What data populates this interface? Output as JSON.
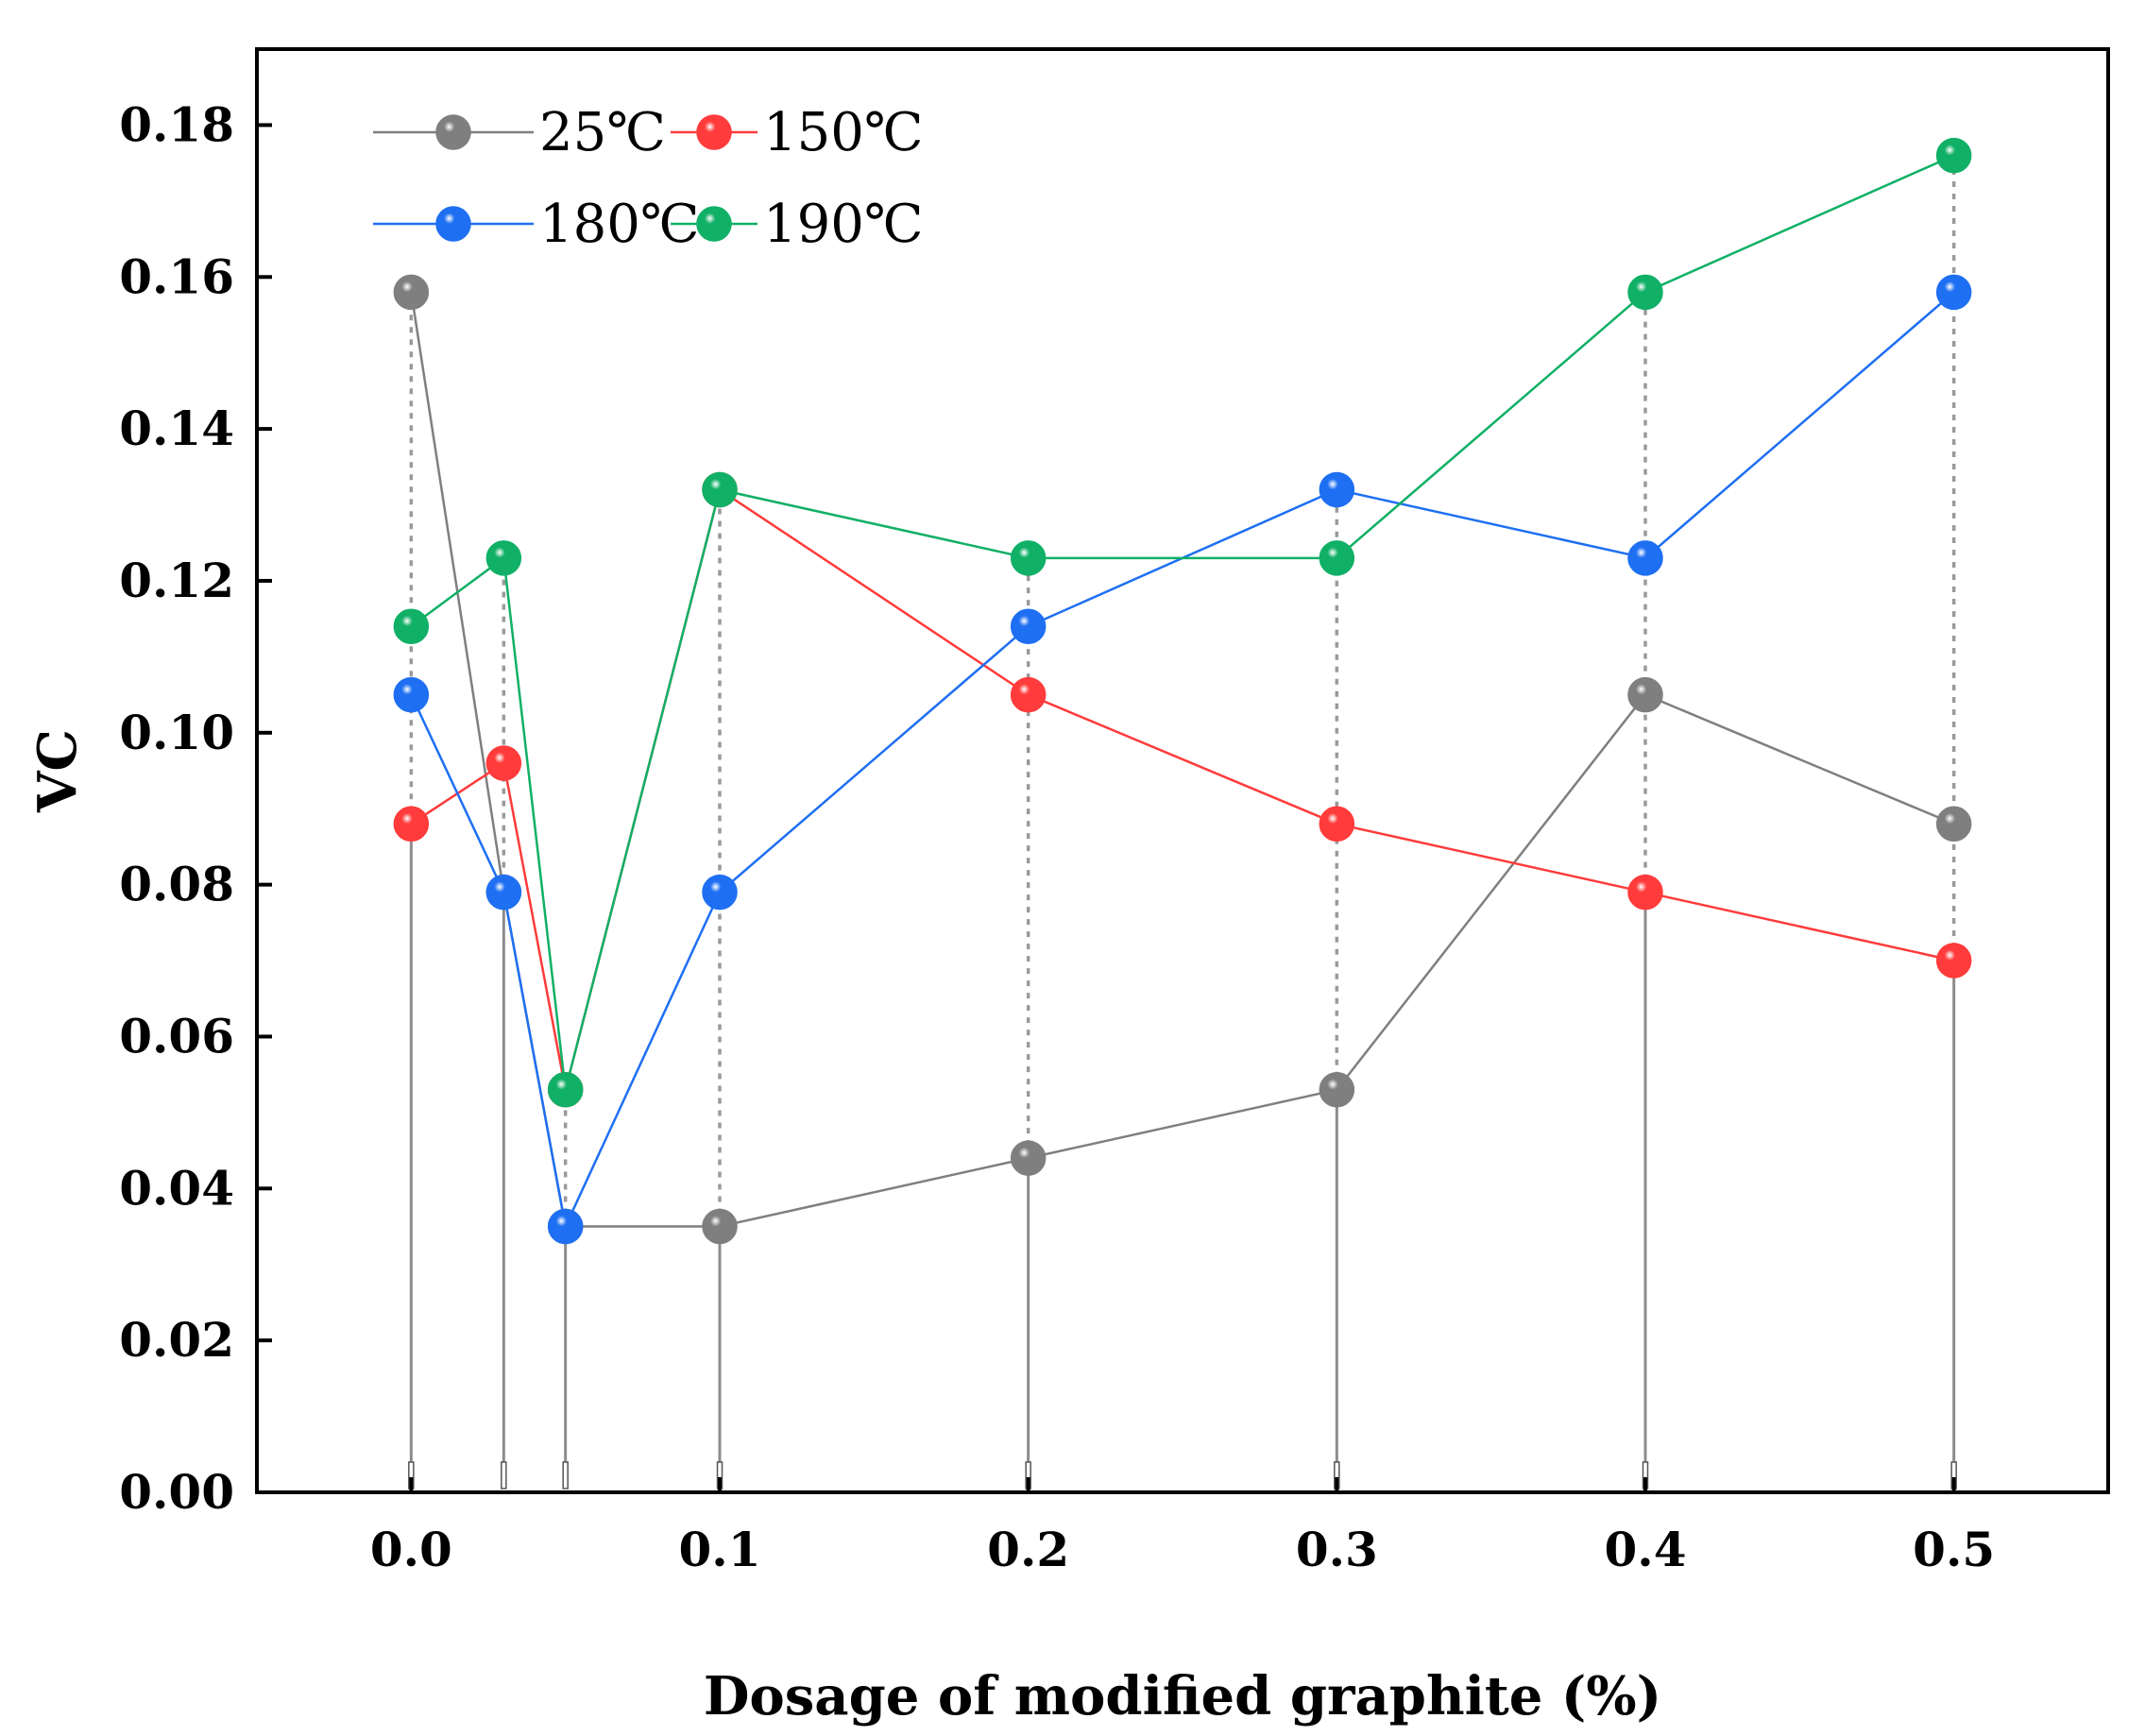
{
  "chart_data": {
    "type": "line",
    "title": "",
    "xlabel": "Dosage of modified graphite (%)",
    "ylabel": "VC",
    "xlim": [
      -0.05,
      0.55
    ],
    "ylim": [
      0,
      0.19
    ],
    "x_ticks": [
      "0.0",
      "0.1",
      "0.2",
      "0.3",
      "0.4",
      "0.5"
    ],
    "y_ticks": [
      "0.00",
      "0.02",
      "0.04",
      "0.06",
      "0.08",
      "0.10",
      "0.12",
      "0.14",
      "0.16",
      "0.18"
    ],
    "x": [
      0,
      0.03,
      0.05,
      0.1,
      0.2,
      0.3,
      0.4,
      0.5
    ],
    "series": [
      {
        "name": "25℃",
        "color": "#7f7f7f",
        "values": [
          0.158,
          0.079,
          0.035,
          0.035,
          0.044,
          0.053,
          0.105,
          0.088
        ]
      },
      {
        "name": "150℃",
        "color": "#ff3b3b",
        "values": [
          0.088,
          0.096,
          0.053,
          0.132,
          0.105,
          0.088,
          0.079,
          0.07
        ]
      },
      {
        "name": "180℃",
        "color": "#1e6ff2",
        "values": [
          0.105,
          0.079,
          0.035,
          0.079,
          0.114,
          0.132,
          0.123,
          0.158
        ]
      },
      {
        "name": "190℃",
        "color": "#10b066",
        "values": [
          0.114,
          0.123,
          0.053,
          0.132,
          0.123,
          0.123,
          0.158,
          0.176
        ]
      }
    ],
    "legend_position": "top-left",
    "drop_lines": true,
    "grid": false
  }
}
